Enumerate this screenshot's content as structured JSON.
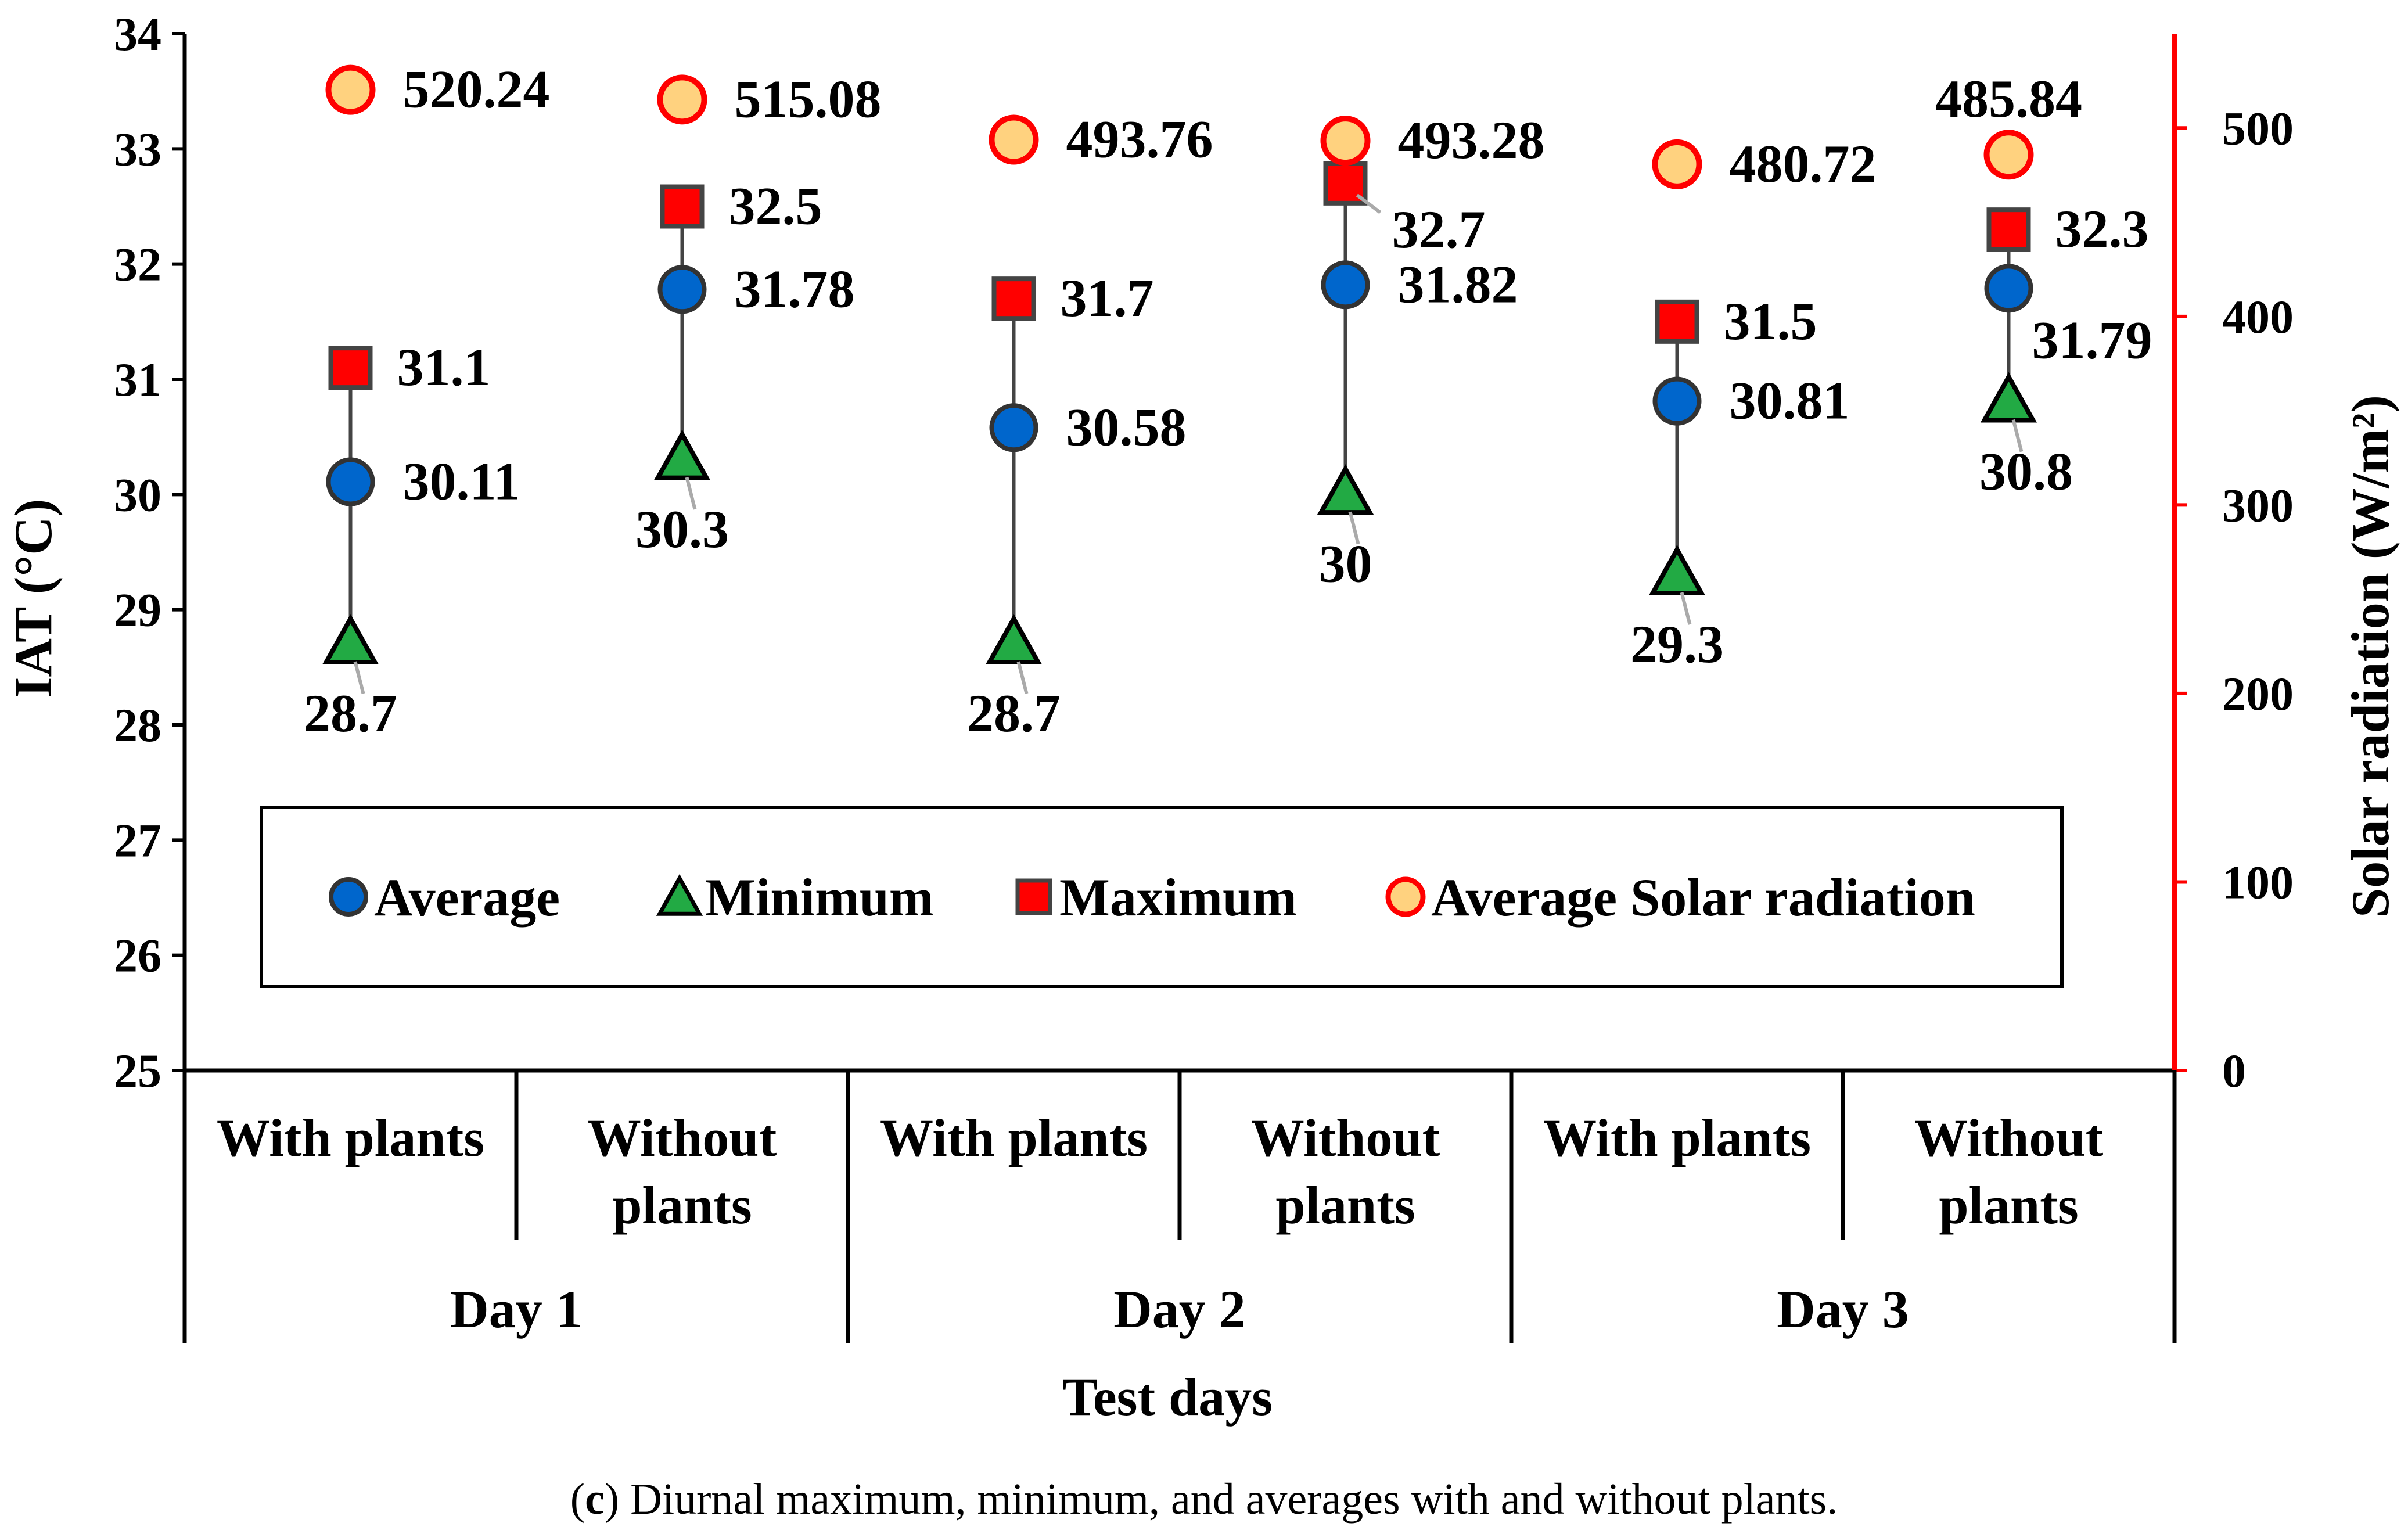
{
  "chart_data": {
    "type": "scatter",
    "xlabel": "Test days",
    "ylabel": "IAT (°C)",
    "y2label": "Solar radiation (W/m²)",
    "ylim": [
      25,
      34
    ],
    "y2lim": [
      0,
      550
    ],
    "yticks": [
      "25",
      "26",
      "27",
      "28",
      "29",
      "30",
      "31",
      "32",
      "33",
      "34"
    ],
    "y2ticks": [
      "0",
      "100",
      "200",
      "300",
      "400",
      "500"
    ],
    "groups": [
      "Day 1",
      "Day 2",
      "Day 3"
    ],
    "categories": [
      {
        "line1": "With plants",
        "line2": ""
      },
      {
        "line1": "Without",
        "line2": "plants"
      },
      {
        "line1": "With plants",
        "line2": ""
      },
      {
        "line1": "Without",
        "line2": "plants"
      },
      {
        "line1": "With plants",
        "line2": ""
      },
      {
        "line1": "Without",
        "line2": "plants"
      }
    ],
    "series": [
      {
        "name": "Average",
        "values": [
          30.11,
          31.78,
          30.58,
          31.82,
          30.81,
          31.79
        ],
        "labels": [
          "30.11",
          "31.78",
          "30.58",
          "31.82",
          "30.81",
          "31.79"
        ],
        "color": "#0066cc",
        "marker": "circle"
      },
      {
        "name": "Minimum",
        "values": [
          28.7,
          30.3,
          28.7,
          30,
          29.3,
          30.8
        ],
        "labels": [
          "28.7",
          "30.3",
          "28.7",
          "30",
          "29.3",
          "30.8"
        ],
        "color": "#22aa44",
        "marker": "triangle"
      },
      {
        "name": "Maximum",
        "values": [
          31.1,
          32.5,
          31.7,
          32.7,
          31.5,
          32.3
        ],
        "labels": [
          "31.1",
          "32.5",
          "31.7",
          "32.7",
          "31.5",
          "32.3"
        ],
        "color": "#ff0000",
        "marker": "square"
      },
      {
        "name": "Average Solar radiation",
        "axis": "right",
        "values": [
          520.24,
          515.08,
          493.76,
          493.28,
          480.72,
          485.84
        ],
        "labels": [
          "520.24",
          "515.08",
          "493.76",
          "493.28",
          "480.72",
          "485.84"
        ],
        "color": "#ffd27f",
        "edge": "#ff0000",
        "marker": "circle"
      }
    ],
    "legend": "inside-bottom",
    "grid": false
  },
  "caption": {
    "letter": "c",
    "text": "Diurnal maximum, minimum, and averages with and without plants."
  }
}
